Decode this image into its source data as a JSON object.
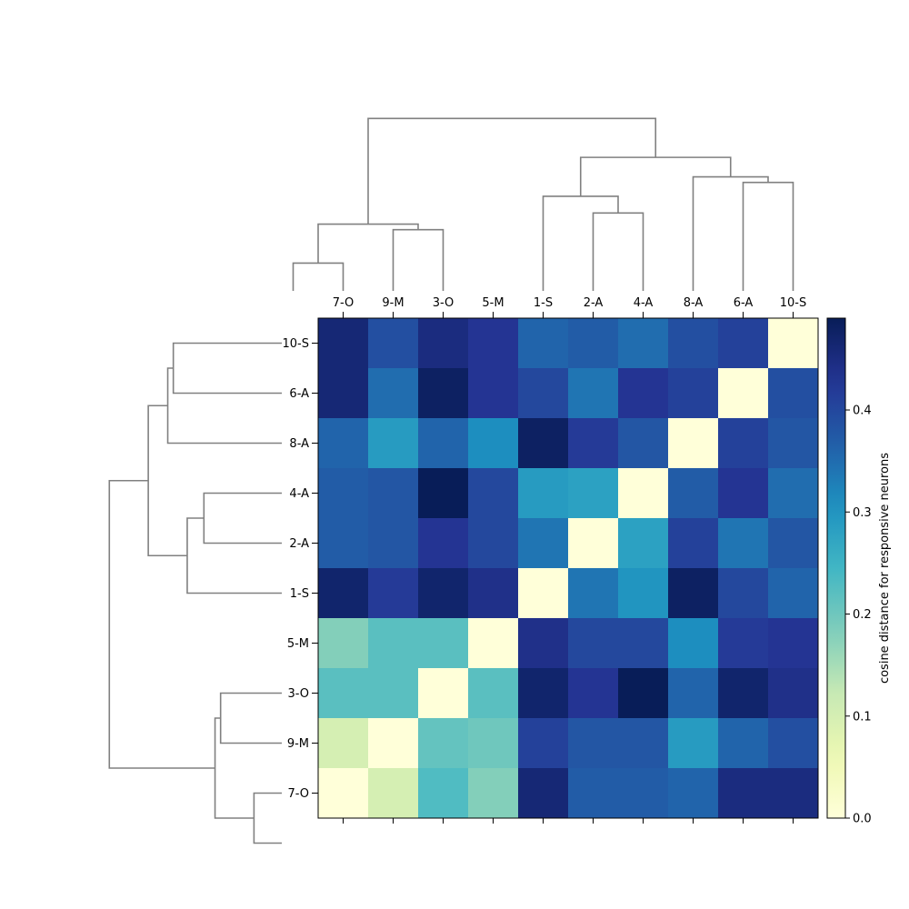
{
  "chart_data": {
    "type": "heatmap",
    "xlabels": [
      "7-O",
      "9-M",
      "3-O",
      "5-M",
      "1-S",
      "2-A",
      "4-A",
      "8-A",
      "6-A",
      "10-S"
    ],
    "ylabels": [
      "10-S",
      "6-A",
      "8-A",
      "4-A",
      "2-A",
      "1-S",
      "5-M",
      "3-O",
      "9-M",
      "7-O"
    ],
    "values": [
      [
        0.46,
        0.39,
        0.45,
        0.43,
        0.36,
        0.37,
        0.35,
        0.39,
        0.41,
        0.0
      ],
      [
        0.46,
        0.35,
        0.48,
        0.43,
        0.4,
        0.34,
        0.43,
        0.41,
        0.0,
        0.39
      ],
      [
        0.36,
        0.29,
        0.36,
        0.31,
        0.48,
        0.42,
        0.38,
        0.0,
        0.41,
        0.38
      ],
      [
        0.37,
        0.38,
        0.49,
        0.4,
        0.29,
        0.28,
        0.0,
        0.37,
        0.43,
        0.35
      ],
      [
        0.37,
        0.38,
        0.43,
        0.4,
        0.34,
        0.0,
        0.28,
        0.41,
        0.34,
        0.38
      ],
      [
        0.47,
        0.42,
        0.47,
        0.44,
        0.0,
        0.34,
        0.3,
        0.48,
        0.4,
        0.36
      ],
      [
        0.18,
        0.22,
        0.22,
        0.0,
        0.44,
        0.4,
        0.4,
        0.31,
        0.42,
        0.43
      ],
      [
        0.22,
        0.22,
        0.0,
        0.22,
        0.47,
        0.43,
        0.49,
        0.36,
        0.47,
        0.44
      ],
      [
        0.1,
        0.0,
        0.21,
        0.2,
        0.41,
        0.38,
        0.38,
        0.29,
        0.36,
        0.39
      ],
      [
        0.0,
        0.1,
        0.23,
        0.18,
        0.46,
        0.37,
        0.37,
        0.36,
        0.45,
        0.45
      ]
    ],
    "colormap": "YlGnBu",
    "vmin": 0.0,
    "vmax": 0.49,
    "colorbar_label": "cosine distance for responsive neurons",
    "colorbar_ticks": [
      0.0,
      0.1,
      0.2,
      0.3,
      0.4
    ],
    "dendrogram_line_color": "#808080",
    "col_dendrogram": [
      {
        "a": 0,
        "b": 1,
        "h": 0.1,
        "ha": 0,
        "hb": 0
      },
      {
        "a": 2,
        "b": 3,
        "h": 0.22,
        "ha": 0,
        "hb": 0
      },
      {
        "a": 0.5,
        "b": 2.5,
        "h": 0.24,
        "ha": 0.1,
        "hb": 0.22
      },
      {
        "a": 6,
        "b": 7,
        "h": 0.28,
        "ha": 0,
        "hb": 0
      },
      {
        "a": 5,
        "b": 6.5,
        "h": 0.34,
        "ha": 0,
        "hb": 0.28
      },
      {
        "a": 9,
        "b": 10,
        "h": 0.39,
        "ha": 0,
        "hb": 0
      },
      {
        "a": 8,
        "b": 9.5,
        "h": 0.41,
        "ha": 0,
        "hb": 0.39
      },
      {
        "a": 5.75,
        "b": 8.75,
        "h": 0.48,
        "ha": 0.34,
        "hb": 0.41
      },
      {
        "a": 1.5,
        "b": 7.25,
        "h": 0.62,
        "ha": 0.24,
        "hb": 0.48
      }
    ]
  }
}
